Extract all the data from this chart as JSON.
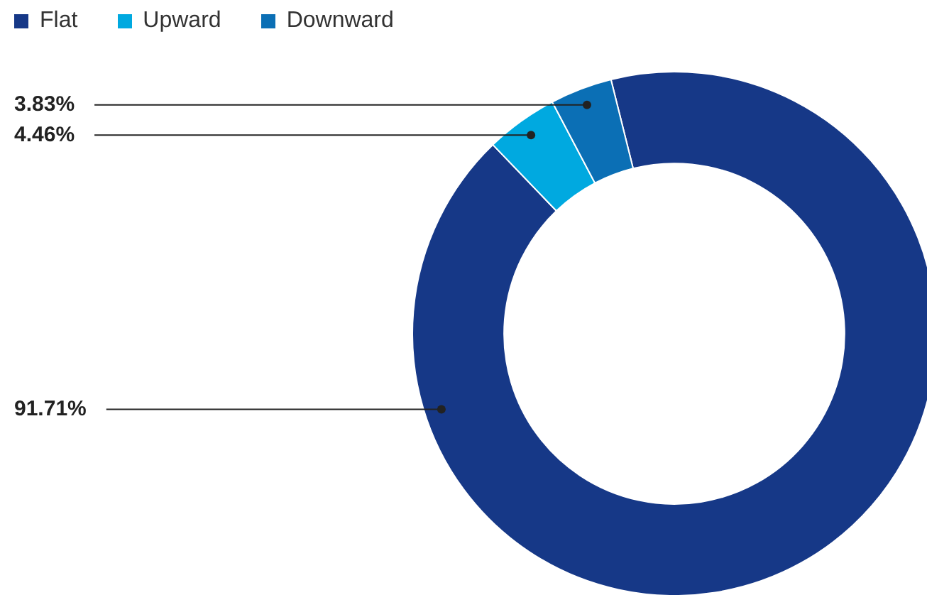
{
  "chart_data": {
    "type": "donut",
    "categories": [
      "Flat",
      "Upward",
      "Downward"
    ],
    "values": [
      91.71,
      4.46,
      3.83
    ],
    "colors": [
      "#163887",
      "#00a9e0",
      "#0b6fb5"
    ],
    "value_labels": [
      "91.71%",
      "4.46%",
      "3.83%"
    ],
    "legend": "top left"
  }
}
